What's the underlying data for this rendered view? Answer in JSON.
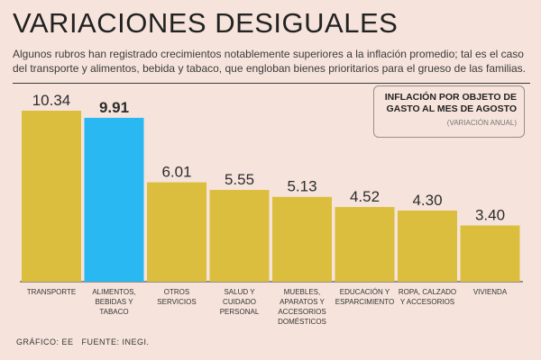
{
  "title": "VARIACIONES DESIGUALES",
  "subtitle": "Algunos rubros han registrado crecimientos notablemente superiores a la inflación promedio; tal es el caso del transporte y alimentos, bebida y tabaco, que engloban bienes prioritarios para el grueso de las familias.",
  "legend_box": {
    "title": "INFLACIÓN POR OBJETO DE GASTO AL MES DE AGOSTO",
    "note": "(VARIACIÓN ANUAL)"
  },
  "footer": {
    "credit": "GRÁFICO: EE",
    "source": "FUENTE: INEGI."
  },
  "colors": {
    "bar": "#dcbe3e",
    "highlight": "#2ab8f2",
    "background": "#f6e4dc"
  },
  "chart_data": {
    "type": "bar",
    "categories": [
      [
        "TRANSPORTE"
      ],
      [
        "ALIMENTOS,",
        "BEBIDAS Y",
        "TABACO"
      ],
      [
        "OTROS",
        "SERVICIOS"
      ],
      [
        "SALUD Y",
        "CUIDADO",
        "PERSONAL"
      ],
      [
        "MUEBLES,",
        "APARATOS Y",
        "ACCESORIOS",
        "DOMÉSTICOS"
      ],
      [
        "EDUCACIÓN Y",
        "ESPARCIMIENTO"
      ],
      [
        "ROPA, CALZADO",
        "Y ACCESORIOS"
      ],
      [
        "VIVIENDA"
      ]
    ],
    "values": [
      10.34,
      9.91,
      6.01,
      5.55,
      5.13,
      4.52,
      4.3,
      3.4
    ],
    "value_labels": [
      "10.34",
      "9.91",
      "6.01",
      "5.55",
      "5.13",
      "4.52",
      "4.30",
      "3.40"
    ],
    "highlight_index": 1,
    "ylim": [
      0,
      10.34
    ]
  }
}
